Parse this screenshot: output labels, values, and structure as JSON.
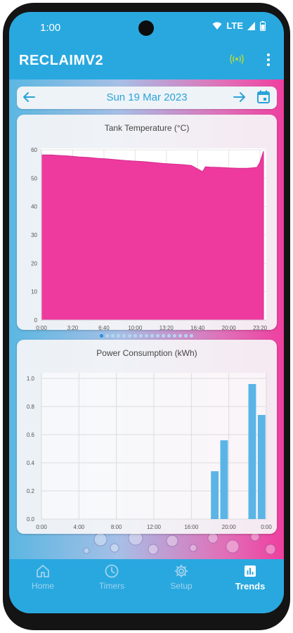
{
  "status": {
    "time": "1:00",
    "network": "LTE"
  },
  "app": {
    "title": "RECLAIMV2",
    "accent": "#29a8e0",
    "connection_color": "#a6d64a"
  },
  "date_bar": {
    "date": "Sun 19 Mar 2023"
  },
  "pager": {
    "count": 17,
    "active_index": 0
  },
  "nav": [
    {
      "label": "Home",
      "icon": "home-icon",
      "active": false
    },
    {
      "label": "Timers",
      "icon": "clock-icon",
      "active": false
    },
    {
      "label": "Setup",
      "icon": "gear-icon",
      "active": false
    },
    {
      "label": "Trends",
      "icon": "bar-chart-icon",
      "active": true
    }
  ],
  "chart_data": [
    {
      "type": "area",
      "title": "Tank Temperature (°C)",
      "x_tick_labels": [
        "0:00",
        "3:20",
        "6:40",
        "10:00",
        "13:20",
        "16:40",
        "20:00",
        "23:20"
      ],
      "y_tick_labels": [
        "0",
        "10",
        "20",
        "30",
        "40",
        "50",
        "60"
      ],
      "ylim": [
        0,
        60
      ],
      "x_hours": [
        0,
        1,
        2,
        3,
        4,
        5,
        6,
        7,
        8,
        9,
        10,
        11,
        12,
        13,
        14,
        15,
        16,
        16.8,
        17.2,
        17.5,
        18,
        19,
        20,
        21,
        22,
        23,
        23.3,
        23.7
      ],
      "values": [
        58.2,
        58.2,
        58.0,
        57.8,
        57.5,
        57.3,
        57.0,
        56.8,
        56.5,
        56.2,
        56.0,
        55.8,
        55.5,
        55.2,
        55.0,
        54.8,
        54.5,
        53.0,
        52.3,
        54.0,
        53.9,
        53.8,
        53.6,
        53.5,
        53.5,
        53.8,
        55.5,
        59.5
      ],
      "color": "#ee3a9f",
      "grid": true
    },
    {
      "type": "bar",
      "title": "Power Consumption (kWh)",
      "x_tick_labels": [
        "0:00",
        "4:00",
        "8:00",
        "12:00",
        "16:00",
        "20:00",
        "0:00"
      ],
      "y_tick_labels": [
        "0.0",
        "0.2",
        "0.4",
        "0.6",
        "0.8",
        "1.0"
      ],
      "ylim": [
        0,
        1.0
      ],
      "bars": [
        {
          "hour": 18.5,
          "value": 0.34
        },
        {
          "hour": 19.5,
          "value": 0.56
        },
        {
          "hour": 22.5,
          "value": 0.96
        },
        {
          "hour": 23.5,
          "value": 0.74
        }
      ],
      "color": "#5ab5e6",
      "grid": true
    }
  ]
}
